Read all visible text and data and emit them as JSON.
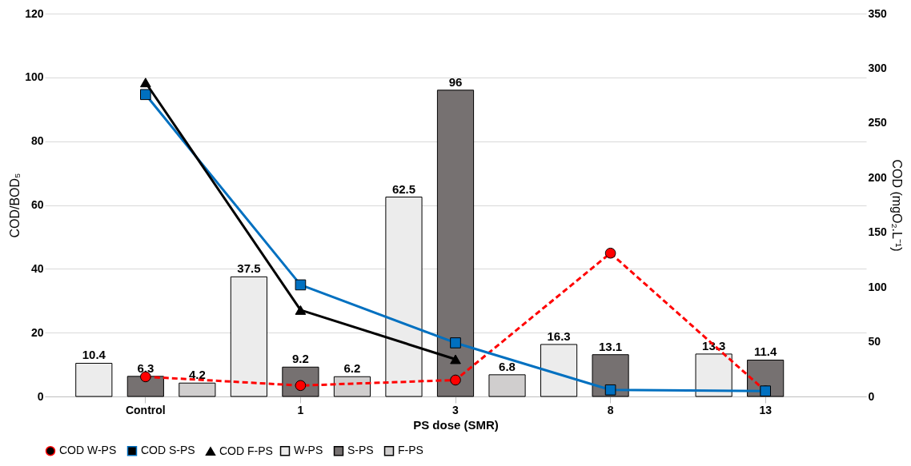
{
  "chart_data": {
    "type": "bar",
    "xlabel": "PS dose (SMR)",
    "ylabel": "COD/BOD₅",
    "y2label": "COD (mgO₂.L⁻¹)",
    "categories": [
      "Control",
      "1",
      "3",
      "8",
      "13"
    ],
    "series": [
      {
        "name": "W-PS",
        "color": "#ececec",
        "values": [
          10.4,
          37.5,
          62.5,
          16.3,
          13.3
        ],
        "value_labels": [
          "10.4",
          "37.5",
          "62.5",
          "16.3",
          "13.3"
        ]
      },
      {
        "name": "S-PS",
        "color": "#767171",
        "values": [
          6.3,
          9.2,
          96,
          13.1,
          11.4
        ],
        "value_labels": [
          "6.3",
          "9.2",
          "96",
          "13.1",
          "11.4"
        ]
      },
      {
        "name": "F-PS",
        "color": "#d0cece",
        "values": [
          4.2,
          6.2,
          6.8,
          null,
          null
        ],
        "value_labels": [
          "4.2",
          "6.2",
          "6.8",
          null,
          null
        ]
      },
      {
        "name": "COD W-PS",
        "type": "line",
        "axis": "y2",
        "color": "#ff0000",
        "marker": "circle",
        "line_style": "dashed",
        "values": [
          18,
          10,
          15,
          131,
          5
        ]
      },
      {
        "name": "COD S-PS",
        "type": "line",
        "axis": "y2",
        "color": "#0070c0",
        "marker": "square",
        "line_style": "solid",
        "values": [
          276,
          102,
          49,
          6,
          5
        ]
      },
      {
        "name": "COD F-PS",
        "type": "line",
        "axis": "y2",
        "color": "#000000",
        "marker": "triangle",
        "line_style": "solid",
        "values": [
          287,
          79,
          34,
          null,
          null
        ]
      }
    ],
    "ylim": [
      0,
      120
    ],
    "yticks": [
      0,
      20,
      40,
      60,
      80,
      100,
      120
    ],
    "y2lim": [
      0,
      350
    ],
    "y2ticks": [
      0,
      50,
      100,
      150,
      200,
      250,
      300,
      350
    ],
    "grid": "y",
    "legend": "bottom"
  }
}
